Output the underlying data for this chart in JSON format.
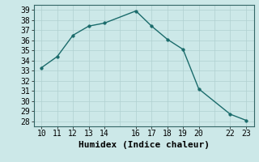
{
  "x": [
    10,
    11,
    12,
    13,
    14,
    16,
    17,
    18,
    19,
    20,
    22,
    23
  ],
  "y": [
    33.3,
    34.4,
    36.5,
    37.4,
    37.7,
    38.9,
    37.4,
    36.1,
    35.1,
    31.2,
    28.7,
    28.1
  ],
  "xlabel": "Humidex (Indice chaleur)",
  "xlim": [
    9.5,
    23.5
  ],
  "ylim": [
    27.5,
    39.5
  ],
  "xticks": [
    10,
    11,
    12,
    13,
    14,
    16,
    17,
    18,
    19,
    20,
    22,
    23
  ],
  "yticks": [
    28,
    29,
    30,
    31,
    32,
    33,
    34,
    35,
    36,
    37,
    38,
    39
  ],
  "background_color": "#cce8e8",
  "line_color": "#1a6b6b",
  "marker_color": "#1a6b6b",
  "grid_color": "#b0d0d0",
  "label_fontsize": 8,
  "tick_fontsize": 7
}
